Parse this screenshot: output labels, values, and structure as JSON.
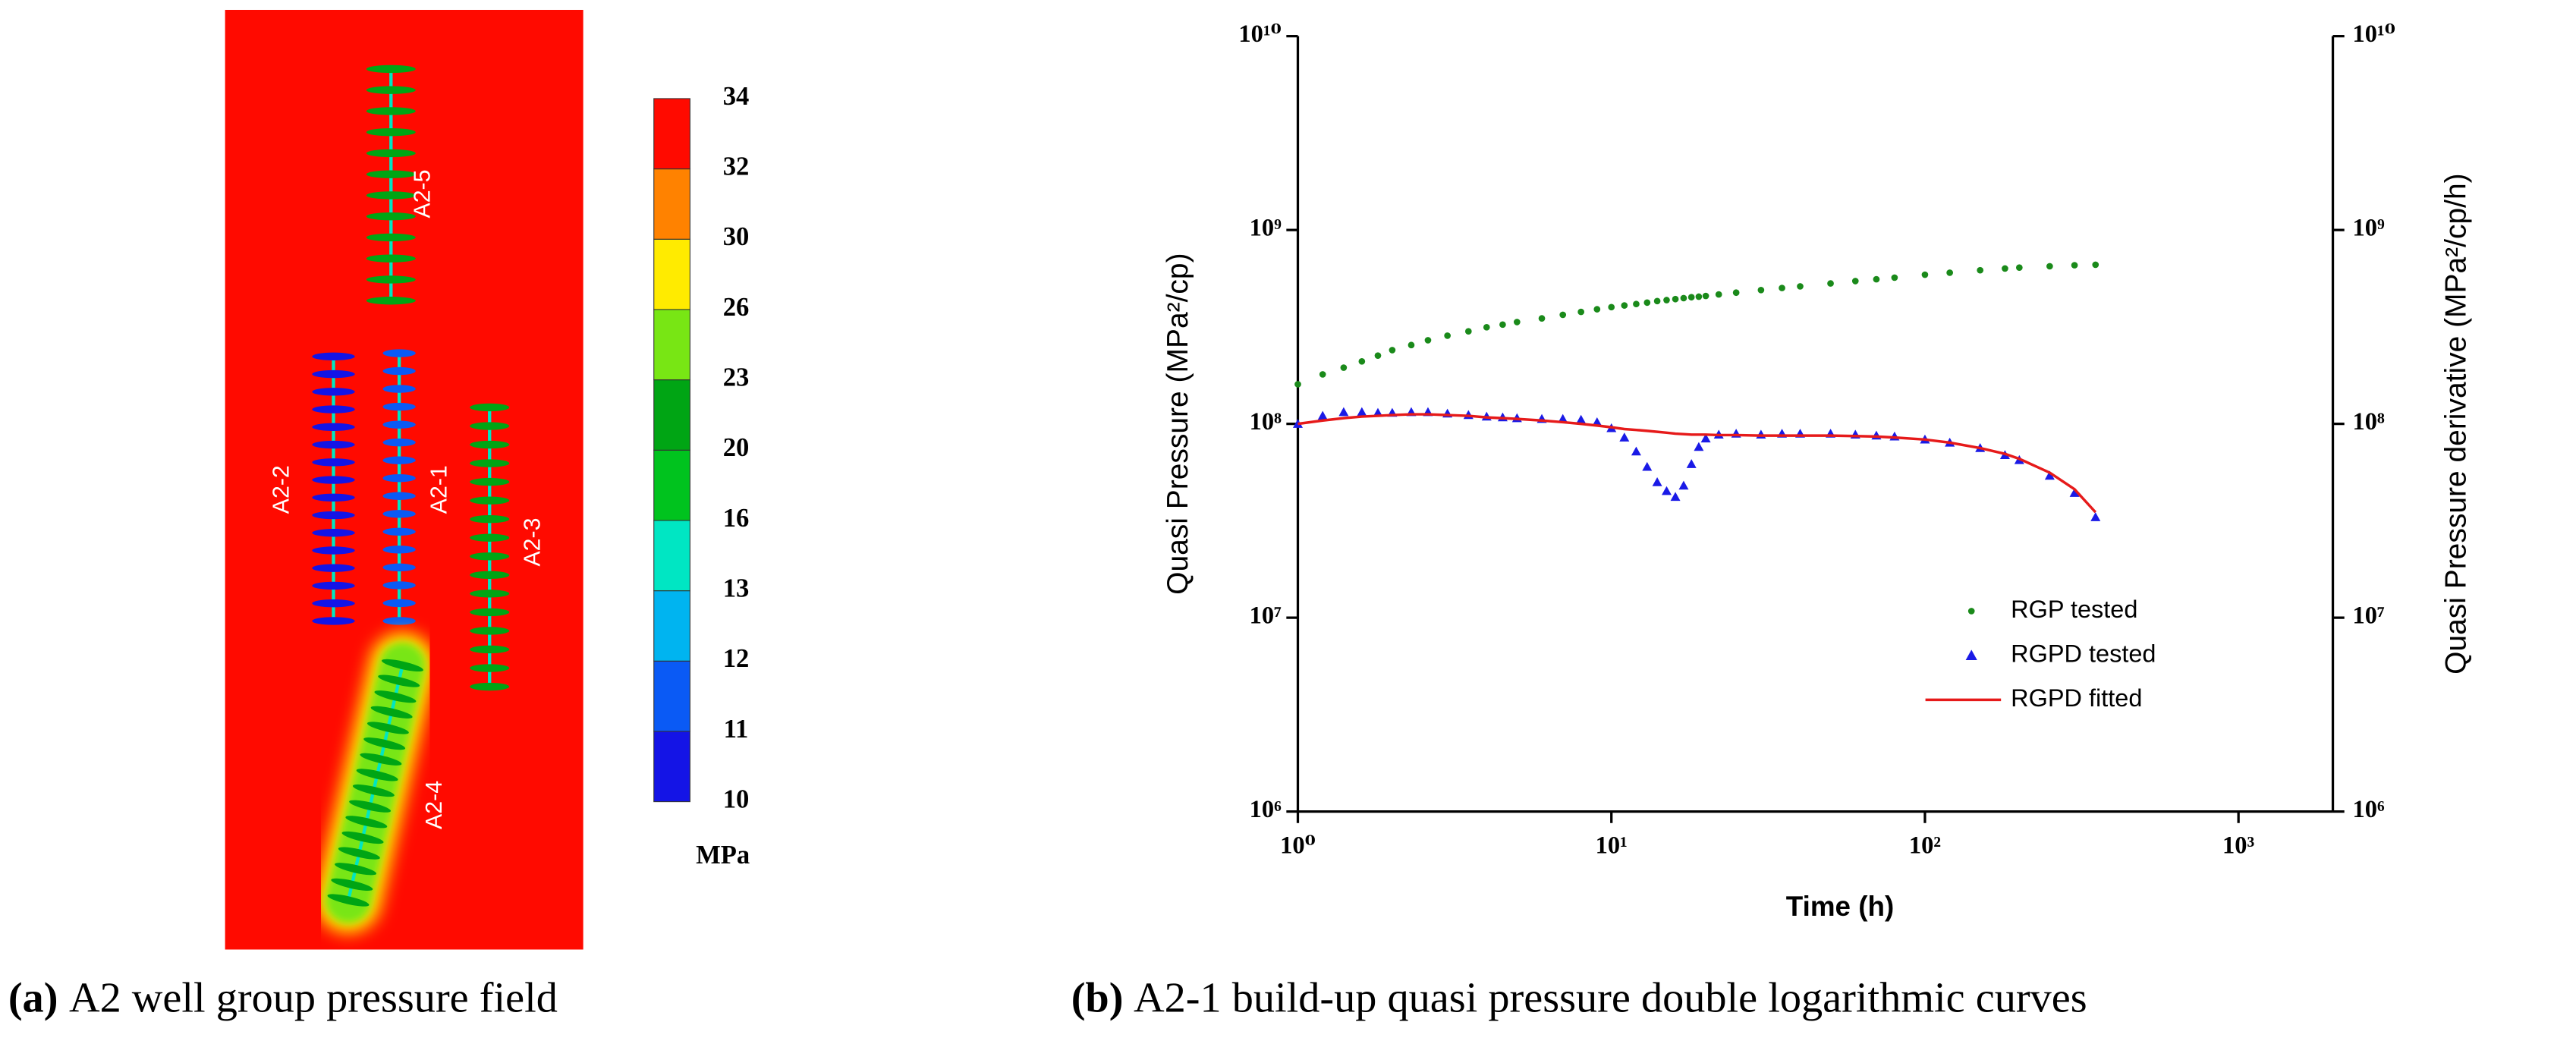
{
  "chart_data": [
    {
      "type": "field",
      "caption_label": "(a)",
      "caption": "A2 well group pressure field",
      "wells": [
        "A2-5",
        "A2-2",
        "A2-1",
        "A2-3",
        "A2-4"
      ],
      "colorbar": {
        "unit": "MPa",
        "ticks": [
          10,
          11,
          12,
          13,
          16,
          20,
          23,
          26,
          30,
          32,
          34
        ],
        "colors": [
          "#1414e6",
          "#0a5af5",
          "#00b4f0",
          "#00e6c3",
          "#00c31e",
          "#00a514",
          "#78e614",
          "#ffeb00",
          "#ff8200",
          "#ff0a00"
        ]
      }
    },
    {
      "type": "scatter",
      "caption_label": "(b)",
      "caption": "A2-1 build-up quasi pressure double logarithmic curves",
      "xlabel": "Time (h)",
      "ylabel": "Quasi Pressure (MPa²/cp)",
      "y2label": "Quasi Pressure derivative (MPa²/cp/h)",
      "log_x": true,
      "log_y": true,
      "xlim": [
        1,
        2000
      ],
      "xticks": [
        {
          "value": 1,
          "label": "10⁰"
        },
        {
          "value": 10,
          "label": "10¹"
        },
        {
          "value": 100,
          "label": "10²"
        },
        {
          "value": 1000,
          "label": "10³"
        }
      ],
      "ylim": [
        1000000.0,
        10000000000.0
      ],
      "yticks": [
        {
          "value": 1000000.0,
          "label": "10⁶"
        },
        {
          "value": 10000000.0,
          "label": "10⁷"
        },
        {
          "value": 100000000.0,
          "label": "10⁸"
        },
        {
          "value": 1000000000.0,
          "label": "10⁹"
        },
        {
          "value": 10000000000.0,
          "label": "10¹⁰"
        }
      ],
      "y2lim": [
        1000000.0,
        10000000000.0
      ],
      "y2ticks": [
        {
          "value": 1000000.0,
          "label": "10⁶"
        },
        {
          "value": 10000000.0,
          "label": "10⁷"
        },
        {
          "value": 100000000.0,
          "label": "10⁸"
        },
        {
          "value": 1000000000.0,
          "label": "10⁹"
        },
        {
          "value": 10000000000.0,
          "label": "10¹⁰"
        }
      ],
      "legend": "lower right",
      "x": [
        1,
        1.2,
        1.4,
        1.6,
        1.8,
        2,
        2.3,
        2.6,
        3,
        3.5,
        4,
        4.5,
        5,
        6,
        7,
        8,
        9,
        10,
        11,
        12,
        13,
        14,
        15,
        16,
        17,
        18,
        19,
        20,
        22,
        25,
        30,
        35,
        40,
        50,
        60,
        70,
        80,
        100,
        120,
        150,
        180,
        200,
        250,
        300,
        350
      ],
      "series": [
        {
          "name": "RGP tested",
          "color": "#1a8a1a",
          "marker": "dot",
          "values": [
            160000000.0,
            180000000.0,
            195000000.0,
            210000000.0,
            225000000.0,
            240000000.0,
            255000000.0,
            270000000.0,
            285000000.0,
            300000000.0,
            315000000.0,
            325000000.0,
            335000000.0,
            350000000.0,
            365000000.0,
            378000000.0,
            390000000.0,
            400000000.0,
            408000000.0,
            415000000.0,
            422000000.0,
            430000000.0,
            435000000.0,
            440000000.0,
            445000000.0,
            450000000.0,
            453000000.0,
            457000000.0,
            465000000.0,
            475000000.0,
            490000000.0,
            502000000.0,
            512000000.0,
            530000000.0,
            545000000.0,
            557000000.0,
            568000000.0,
            588000000.0,
            602000000.0,
            620000000.0,
            633000000.0,
            640000000.0,
            650000000.0,
            658000000.0,
            662000000.0
          ]
        },
        {
          "name": "RGPD tested",
          "color": "#1a1ae6",
          "marker": "triangle",
          "values": [
            100000000.0,
            110000000.0,
            115000000.0,
            115000000.0,
            114000000.0,
            114000000.0,
            115000000.0,
            115000000.0,
            113000000.0,
            111000000.0,
            109000000.0,
            108000000.0,
            107000000.0,
            106000000.0,
            106000000.0,
            105000000.0,
            102000000.0,
            95000000.0,
            85000000.0,
            72000000.0,
            60000000.0,
            50000000.0,
            45000000.0,
            42000000.0,
            48000000.0,
            62000000.0,
            76000000.0,
            84000000.0,
            88000000.0,
            89000000.0,
            88000000.0,
            89000000.0,
            89000000.0,
            89000000.0,
            88000000.0,
            87000000.0,
            86000000.0,
            83000000.0,
            80000000.0,
            75000000.0,
            69000000.0,
            65000000.0,
            54000000.0,
            44000000.0,
            33000000.0
          ]
        },
        {
          "name": "RGPD fitted",
          "color": "#e61a1a",
          "marker": "line",
          "values": [
            100000000.0,
            104000000.0,
            107000000.0,
            109000000.0,
            110000000.0,
            111000000.0,
            112000000.0,
            112000000.0,
            111000000.0,
            110000000.0,
            108000000.0,
            107000000.0,
            106000000.0,
            104000000.0,
            102000000.0,
            100000000.0,
            98000000.0,
            96000000.0,
            94000000.0,
            93000000.0,
            92000000.0,
            91000000.0,
            90000000.0,
            89000000.0,
            88500000.0,
            88000000.0,
            88000000.0,
            88000000.0,
            87500000.0,
            87500000.0,
            87000000.0,
            87000000.0,
            87000000.0,
            87000000.0,
            86500000.0,
            86000000.0,
            85000000.0,
            83000000.0,
            80000000.0,
            75000000.0,
            70000000.0,
            66000000.0,
            56000000.0,
            46000000.0,
            35000000.0
          ]
        }
      ]
    }
  ]
}
